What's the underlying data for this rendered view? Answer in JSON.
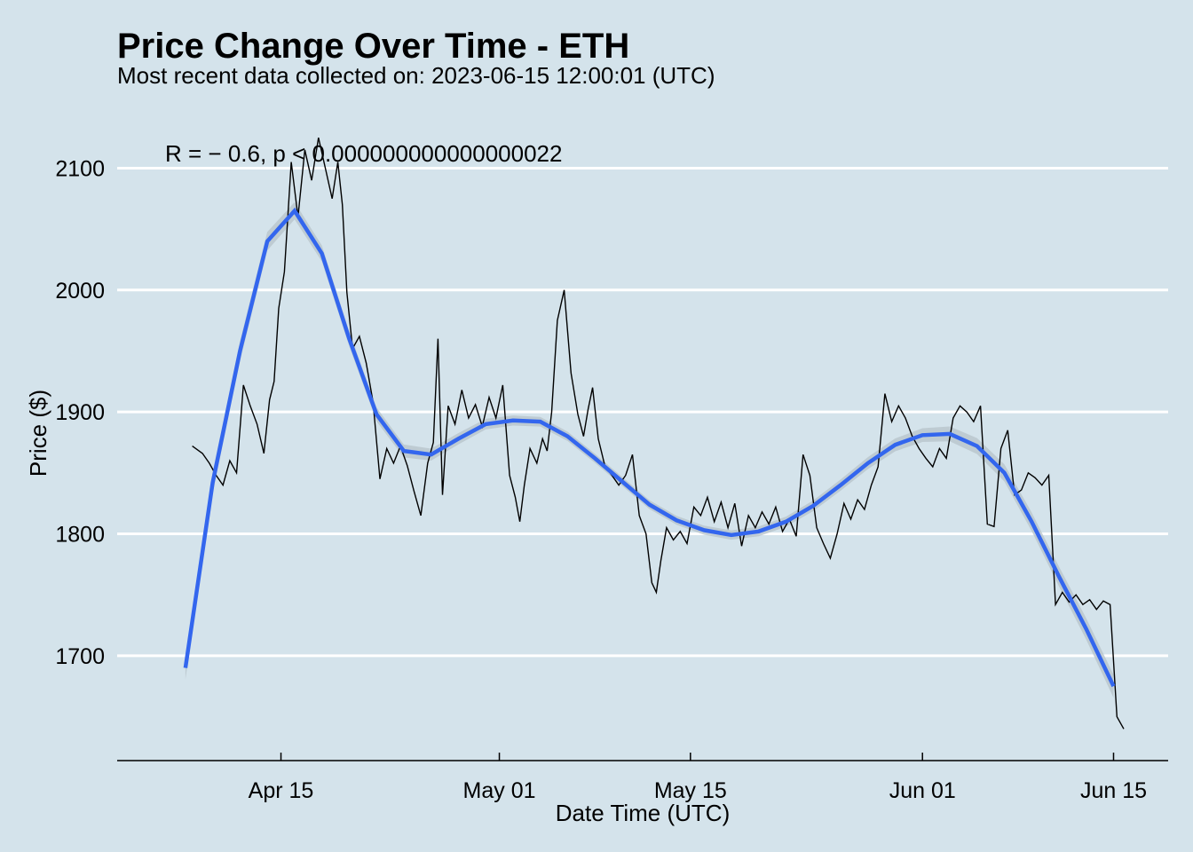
{
  "chart_data": {
    "type": "line",
    "title": "Price Change Over Time - ETH",
    "subtitle": "Most recent data collected on: 2023-06-15 12:00:01 (UTC)",
    "xlabel": "Date Time (UTC)",
    "ylabel": "Price ($)",
    "annotation": "R = − 0.6, p < 0.000000000000000022",
    "x_ticks": [
      {
        "label": "Apr 15",
        "date": "2023-04-15"
      },
      {
        "label": "May 01",
        "date": "2023-05-01"
      },
      {
        "label": "May 15",
        "date": "2023-05-15"
      },
      {
        "label": "Jun 01",
        "date": "2023-06-01"
      },
      {
        "label": "Jun 15",
        "date": "2023-06-15"
      }
    ],
    "y_ticks": [
      1700,
      1800,
      1900,
      2000,
      2100
    ],
    "xlim": [
      "2023-04-03",
      "2023-06-19"
    ],
    "ylim": [
      1614,
      2136
    ],
    "grid": "horizontal major lines",
    "colors": {
      "background": "#d4e3eb",
      "price_line": "#000000",
      "smooth_line": "#3366ee",
      "smooth_band": "#b8c4cc",
      "grid": "#ffffff"
    },
    "series": [
      {
        "role": "price",
        "points": [
          [
            "2023-04-08",
            1872
          ],
          [
            "2023-04-09",
            1866
          ],
          [
            "2023-04-09",
            1858
          ],
          [
            "2023-04-10",
            1848
          ],
          [
            "2023-04-10",
            1840
          ],
          [
            "2023-04-11",
            1860
          ],
          [
            "2023-04-11",
            1850
          ],
          [
            "2023-04-12",
            1922
          ],
          [
            "2023-04-12",
            1905
          ],
          [
            "2023-04-13",
            1890
          ],
          [
            "2023-04-13",
            1866
          ],
          [
            "2023-04-14",
            1910
          ],
          [
            "2023-04-14",
            1925
          ],
          [
            "2023-04-14",
            1985
          ],
          [
            "2023-04-15",
            2015
          ],
          [
            "2023-04-15",
            2105
          ],
          [
            "2023-04-16",
            2060
          ],
          [
            "2023-04-16",
            2115
          ],
          [
            "2023-04-17",
            2090
          ],
          [
            "2023-04-17",
            2125
          ],
          [
            "2023-04-18",
            2100
          ],
          [
            "2023-04-18",
            2075
          ],
          [
            "2023-04-19",
            2105
          ],
          [
            "2023-04-19",
            2070
          ],
          [
            "2023-04-19",
            1998
          ],
          [
            "2023-04-20",
            1952
          ],
          [
            "2023-04-20",
            1962
          ],
          [
            "2023-04-21",
            1940
          ],
          [
            "2023-04-21",
            1908
          ],
          [
            "2023-04-22",
            1845
          ],
          [
            "2023-04-22",
            1870
          ],
          [
            "2023-04-23",
            1858
          ],
          [
            "2023-04-23",
            1872
          ],
          [
            "2023-04-24",
            1856
          ],
          [
            "2023-04-24",
            1835
          ],
          [
            "2023-04-25",
            1815
          ],
          [
            "2023-04-25",
            1858
          ],
          [
            "2023-04-26",
            1875
          ],
          [
            "2023-04-26",
            1960
          ],
          [
            "2023-04-26",
            1832
          ],
          [
            "2023-04-27",
            1905
          ],
          [
            "2023-04-27",
            1890
          ],
          [
            "2023-04-28",
            1918
          ],
          [
            "2023-04-28",
            1895
          ],
          [
            "2023-04-29",
            1906
          ],
          [
            "2023-04-29",
            1888
          ],
          [
            "2023-04-30",
            1912
          ],
          [
            "2023-04-30",
            1895
          ],
          [
            "2023-05-01",
            1922
          ],
          [
            "2023-05-01",
            1848
          ],
          [
            "2023-05-02",
            1830
          ],
          [
            "2023-05-02",
            1810
          ],
          [
            "2023-05-02",
            1840
          ],
          [
            "2023-05-03",
            1870
          ],
          [
            "2023-05-03",
            1858
          ],
          [
            "2023-05-04",
            1878
          ],
          [
            "2023-05-04",
            1868
          ],
          [
            "2023-05-04",
            1900
          ],
          [
            "2023-05-05",
            1975
          ],
          [
            "2023-05-05",
            2000
          ],
          [
            "2023-05-06",
            1932
          ],
          [
            "2023-05-06",
            1898
          ],
          [
            "2023-05-07",
            1880
          ],
          [
            "2023-05-07",
            1902
          ],
          [
            "2023-05-07",
            1920
          ],
          [
            "2023-05-08",
            1878
          ],
          [
            "2023-05-08",
            1855
          ],
          [
            "2023-05-09",
            1848
          ],
          [
            "2023-05-09",
            1840
          ],
          [
            "2023-05-10",
            1848
          ],
          [
            "2023-05-10",
            1865
          ],
          [
            "2023-05-11",
            1815
          ],
          [
            "2023-05-11",
            1800
          ],
          [
            "2023-05-12",
            1760
          ],
          [
            "2023-05-12",
            1752
          ],
          [
            "2023-05-12",
            1778
          ],
          [
            "2023-05-13",
            1805
          ],
          [
            "2023-05-13",
            1795
          ],
          [
            "2023-05-14",
            1802
          ],
          [
            "2023-05-14",
            1792
          ],
          [
            "2023-05-15",
            1822
          ],
          [
            "2023-05-15",
            1815
          ],
          [
            "2023-05-16",
            1830
          ],
          [
            "2023-05-16",
            1810
          ],
          [
            "2023-05-17",
            1826
          ],
          [
            "2023-05-17",
            1805
          ],
          [
            "2023-05-18",
            1825
          ],
          [
            "2023-05-18",
            1790
          ],
          [
            "2023-05-19",
            1815
          ],
          [
            "2023-05-19",
            1805
          ],
          [
            "2023-05-20",
            1818
          ],
          [
            "2023-05-20",
            1808
          ],
          [
            "2023-05-21",
            1822
          ],
          [
            "2023-05-21",
            1802
          ],
          [
            "2023-05-22",
            1812
          ],
          [
            "2023-05-22",
            1798
          ],
          [
            "2023-05-23",
            1865
          ],
          [
            "2023-05-23",
            1848
          ],
          [
            "2023-05-24",
            1805
          ],
          [
            "2023-05-24",
            1792
          ],
          [
            "2023-05-25",
            1780
          ],
          [
            "2023-05-25",
            1800
          ],
          [
            "2023-05-26",
            1825
          ],
          [
            "2023-05-26",
            1812
          ],
          [
            "2023-05-27",
            1828
          ],
          [
            "2023-05-27",
            1820
          ],
          [
            "2023-05-28",
            1840
          ],
          [
            "2023-05-28",
            1855
          ],
          [
            "2023-05-29",
            1915
          ],
          [
            "2023-05-29",
            1892
          ],
          [
            "2023-05-30",
            1905
          ],
          [
            "2023-05-30",
            1895
          ],
          [
            "2023-05-31",
            1880
          ],
          [
            "2023-05-31",
            1870
          ],
          [
            "2023-06-01",
            1862
          ],
          [
            "2023-06-01",
            1855
          ],
          [
            "2023-06-02",
            1870
          ],
          [
            "2023-06-02",
            1862
          ],
          [
            "2023-06-03",
            1895
          ],
          [
            "2023-06-03",
            1905
          ],
          [
            "2023-06-04",
            1900
          ],
          [
            "2023-06-04",
            1892
          ],
          [
            "2023-06-05",
            1905
          ],
          [
            "2023-06-05",
            1808
          ],
          [
            "2023-06-06",
            1806
          ],
          [
            "2023-06-06",
            1870
          ],
          [
            "2023-06-07",
            1885
          ],
          [
            "2023-06-07",
            1832
          ],
          [
            "2023-06-08",
            1836
          ],
          [
            "2023-06-08",
            1850
          ],
          [
            "2023-06-09",
            1846
          ],
          [
            "2023-06-09",
            1840
          ],
          [
            "2023-06-10",
            1848
          ],
          [
            "2023-06-10",
            1742
          ],
          [
            "2023-06-11",
            1752
          ],
          [
            "2023-06-11",
            1744
          ],
          [
            "2023-06-12",
            1750
          ],
          [
            "2023-06-12",
            1742
          ],
          [
            "2023-06-13",
            1746
          ],
          [
            "2023-06-13",
            1738
          ],
          [
            "2023-06-14",
            1745
          ],
          [
            "2023-06-14",
            1742
          ],
          [
            "2023-06-15",
            1650
          ],
          [
            "2023-06-15",
            1640
          ]
        ]
      },
      {
        "role": "loess smooth",
        "points": [
          [
            "2023-04-08",
            1690
          ],
          [
            "2023-04-10",
            1842
          ],
          [
            "2023-04-12",
            1950
          ],
          [
            "2023-04-14",
            2040
          ],
          [
            "2023-04-16",
            2065
          ],
          [
            "2023-04-18",
            2030
          ],
          [
            "2023-04-20",
            1960
          ],
          [
            "2023-04-22",
            1898
          ],
          [
            "2023-04-24",
            1868
          ],
          [
            "2023-04-26",
            1865
          ],
          [
            "2023-04-28",
            1878
          ],
          [
            "2023-04-30",
            1890
          ],
          [
            "2023-05-02",
            1893
          ],
          [
            "2023-05-04",
            1892
          ],
          [
            "2023-05-06",
            1880
          ],
          [
            "2023-05-08",
            1862
          ],
          [
            "2023-05-10",
            1843
          ],
          [
            "2023-05-12",
            1824
          ],
          [
            "2023-05-14",
            1811
          ],
          [
            "2023-05-16",
            1803
          ],
          [
            "2023-05-18",
            1799
          ],
          [
            "2023-05-20",
            1802
          ],
          [
            "2023-05-22",
            1810
          ],
          [
            "2023-05-24",
            1823
          ],
          [
            "2023-05-26",
            1840
          ],
          [
            "2023-05-28",
            1858
          ],
          [
            "2023-05-30",
            1873
          ],
          [
            "2023-06-01",
            1881
          ],
          [
            "2023-06-03",
            1882
          ],
          [
            "2023-06-05",
            1872
          ],
          [
            "2023-06-07",
            1850
          ],
          [
            "2023-06-09",
            1810
          ],
          [
            "2023-06-11",
            1765
          ],
          [
            "2023-06-13",
            1722
          ],
          [
            "2023-06-15",
            1675
          ]
        ]
      }
    ]
  }
}
